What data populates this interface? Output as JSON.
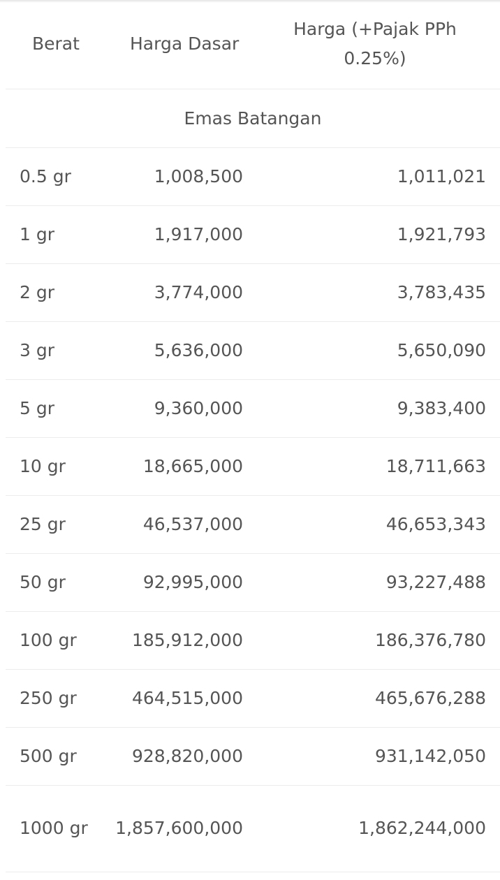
{
  "table": {
    "headers": {
      "berat": "Berat",
      "harga_dasar": "Harga Dasar",
      "harga_pajak": "Harga (+Pajak PPh 0.25%)"
    },
    "section_title": "Emas Batangan",
    "rows": [
      {
        "berat": "0.5 gr",
        "harga_dasar": "1,008,500",
        "harga_pajak": "1,011,021"
      },
      {
        "berat": "1 gr",
        "harga_dasar": "1,917,000",
        "harga_pajak": "1,921,793"
      },
      {
        "berat": "2 gr",
        "harga_dasar": "3,774,000",
        "harga_pajak": "3,783,435"
      },
      {
        "berat": "3 gr",
        "harga_dasar": "5,636,000",
        "harga_pajak": "5,650,090"
      },
      {
        "berat": "5 gr",
        "harga_dasar": "9,360,000",
        "harga_pajak": "9,383,400"
      },
      {
        "berat": "10 gr",
        "harga_dasar": "18,665,000",
        "harga_pajak": "18,711,663"
      },
      {
        "berat": "25 gr",
        "harga_dasar": "46,537,000",
        "harga_pajak": "46,653,343"
      },
      {
        "berat": "50 gr",
        "harga_dasar": "92,995,000",
        "harga_pajak": "93,227,488"
      },
      {
        "berat": "100 gr",
        "harga_dasar": "185,912,000",
        "harga_pajak": "186,376,780"
      },
      {
        "berat": "250 gr",
        "harga_dasar": "464,515,000",
        "harga_pajak": "465,676,288"
      },
      {
        "berat": "500 gr",
        "harga_dasar": "928,820,000",
        "harga_pajak": "931,142,050"
      },
      {
        "berat": "1000 gr",
        "harga_dasar": "1,857,600,000",
        "harga_pajak": "1,862,244,000"
      }
    ]
  }
}
